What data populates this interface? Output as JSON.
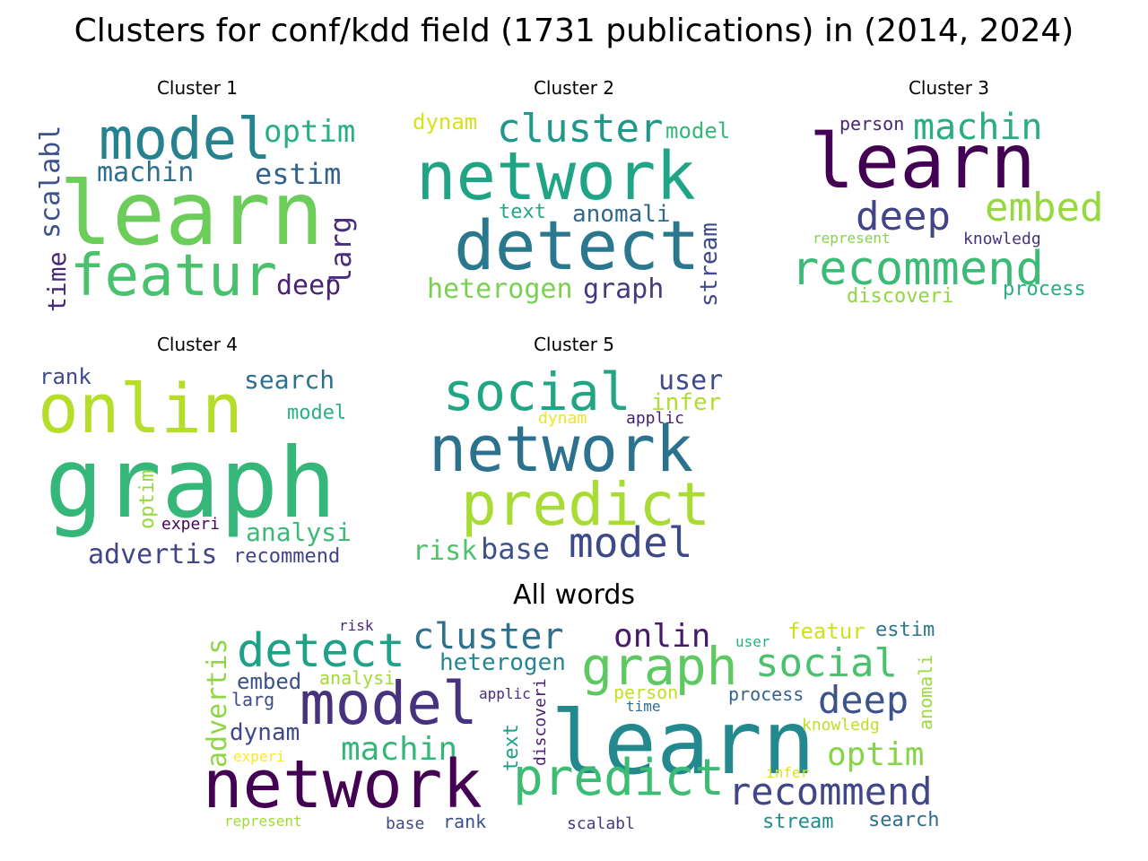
{
  "figure": {
    "title": "Clusters for conf/kdd field (1731 publications) in (2014, 2024)"
  },
  "panels": [
    {
      "title": "Cluster 1",
      "words": [
        {
          "text": "learn",
          "color": "#6ccd5a"
        },
        {
          "text": "model",
          "color": "#26828e"
        },
        {
          "text": "featur",
          "color": "#4ac16d"
        },
        {
          "text": "optim",
          "color": "#2ab07f"
        },
        {
          "text": "machin",
          "color": "#2e6e8e"
        },
        {
          "text": "estim",
          "color": "#33638d"
        },
        {
          "text": "scalabl",
          "color": "#3b528b"
        },
        {
          "text": "larg",
          "color": "#472d7b"
        },
        {
          "text": "time",
          "color": "#482878"
        },
        {
          "text": "deep",
          "color": "#482475"
        }
      ]
    },
    {
      "title": "Cluster 2",
      "words": [
        {
          "text": "network",
          "color": "#20a486"
        },
        {
          "text": "detect",
          "color": "#2a788e"
        },
        {
          "text": "cluster",
          "color": "#1f988b"
        },
        {
          "text": "dynam",
          "color": "#d8e219"
        },
        {
          "text": "model",
          "color": "#35b779"
        },
        {
          "text": "text",
          "color": "#22a884"
        },
        {
          "text": "anomali",
          "color": "#31688e"
        },
        {
          "text": "heterogen",
          "color": "#7ad151"
        },
        {
          "text": "graph",
          "color": "#443983"
        },
        {
          "text": "stream",
          "color": "#3e4a89"
        }
      ]
    },
    {
      "title": "Cluster 3",
      "words": [
        {
          "text": "learn",
          "color": "#440154"
        },
        {
          "text": "machin",
          "color": "#29af7f"
        },
        {
          "text": "person",
          "color": "#482475"
        },
        {
          "text": "deep",
          "color": "#414487"
        },
        {
          "text": "embed",
          "color": "#95d840"
        },
        {
          "text": "represent",
          "color": "#86d549"
        },
        {
          "text": "knowledg",
          "color": "#46337e"
        },
        {
          "text": "recommend",
          "color": "#3bbb75"
        },
        {
          "text": "discoveri",
          "color": "#90d743"
        },
        {
          "text": "process",
          "color": "#29af7f"
        }
      ]
    },
    {
      "title": "Cluster 4",
      "words": [
        {
          "text": "rank",
          "color": "#3e4a89"
        },
        {
          "text": "search",
          "color": "#2d708e"
        },
        {
          "text": "onlin",
          "color": "#b5de2b"
        },
        {
          "text": "model",
          "color": "#2ab07f"
        },
        {
          "text": "graph",
          "color": "#35b779"
        },
        {
          "text": "optim",
          "color": "#95d840"
        },
        {
          "text": "experi",
          "color": "#450559"
        },
        {
          "text": "analysi",
          "color": "#3aba76"
        },
        {
          "text": "advertis",
          "color": "#404688"
        },
        {
          "text": "recommend",
          "color": "#414487"
        }
      ]
    },
    {
      "title": "Cluster 5",
      "words": [
        {
          "text": "social",
          "color": "#21a685"
        },
        {
          "text": "user",
          "color": "#3e4a89"
        },
        {
          "text": "infer",
          "color": "#b0dd2f"
        },
        {
          "text": "dynam",
          "color": "#f1e51d"
        },
        {
          "text": "applic",
          "color": "#481f70"
        },
        {
          "text": "network",
          "color": "#2c718e"
        },
        {
          "text": "predict",
          "color": "#a8db34"
        },
        {
          "text": "risk",
          "color": "#4ec36b"
        },
        {
          "text": "base",
          "color": "#3b528b"
        },
        {
          "text": "model",
          "color": "#3e4989"
        }
      ]
    },
    {
      "title": "All words",
      "words": [
        {
          "text": "advertis",
          "color": "#8ed645"
        },
        {
          "text": "detect",
          "color": "#1fa187"
        },
        {
          "text": "cluster",
          "color": "#2c728e"
        },
        {
          "text": "onlin",
          "color": "#481a6c"
        },
        {
          "text": "risk",
          "color": "#472c7a"
        },
        {
          "text": "featur",
          "color": "#d0e11c"
        },
        {
          "text": "estim",
          "color": "#2a778e"
        },
        {
          "text": "user",
          "color": "#29af7f"
        },
        {
          "text": "heterogen",
          "color": "#24868e"
        },
        {
          "text": "graph",
          "color": "#5ec962"
        },
        {
          "text": "social",
          "color": "#4ac16d"
        },
        {
          "text": "embed",
          "color": "#3b528b"
        },
        {
          "text": "analysi",
          "color": "#a2da37"
        },
        {
          "text": "larg",
          "color": "#3e4c8a"
        },
        {
          "text": "model",
          "color": "#46327e"
        },
        {
          "text": "applic",
          "color": "#472a7a"
        },
        {
          "text": "discoveri",
          "color": "#481f70"
        },
        {
          "text": "person",
          "color": "#c0df25"
        },
        {
          "text": "time",
          "color": "#2e6e8e"
        },
        {
          "text": "process",
          "color": "#33638d"
        },
        {
          "text": "deep",
          "color": "#3b528b"
        },
        {
          "text": "anomali",
          "color": "#9bd93c"
        },
        {
          "text": "dynam",
          "color": "#3e4989"
        },
        {
          "text": "machin",
          "color": "#35b779"
        },
        {
          "text": "text",
          "color": "#1fa088"
        },
        {
          "text": "learn",
          "color": "#23898e"
        },
        {
          "text": "knowledg",
          "color": "#bddf26"
        },
        {
          "text": "optim",
          "color": "#86d549"
        },
        {
          "text": "experi",
          "color": "#fde725"
        },
        {
          "text": "network",
          "color": "#440154"
        },
        {
          "text": "predict",
          "color": "#3dbc74"
        },
        {
          "text": "recommend",
          "color": "#404688"
        },
        {
          "text": "infer",
          "color": "#dde318"
        },
        {
          "text": "represent",
          "color": "#a0da39"
        },
        {
          "text": "base",
          "color": "#3e4989"
        },
        {
          "text": "rank",
          "color": "#3b528b"
        },
        {
          "text": "scalabl",
          "color": "#443a83"
        },
        {
          "text": "stream",
          "color": "#218e8d"
        },
        {
          "text": "search",
          "color": "#2e6d8e"
        }
      ]
    }
  ]
}
